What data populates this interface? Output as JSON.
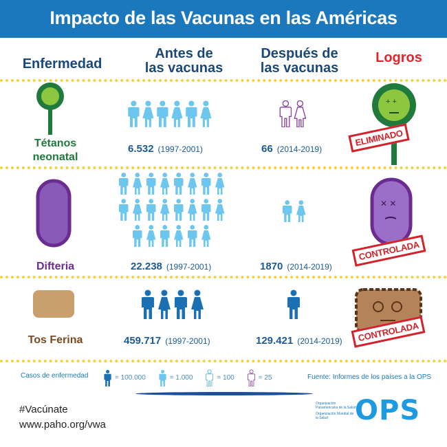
{
  "title": "Impacto de las Vacunas en las Américas",
  "columns": {
    "disease": "Enfermedad",
    "before": "Antes de las vacunas",
    "before_l1": "Antes de",
    "before_l2": "las vacunas",
    "after_l1": "Después de",
    "after_l2": "las vacunas",
    "achievements": "Logros"
  },
  "rows": [
    {
      "disease": "Tétanos neonatal",
      "d1": "Tétanos",
      "d2": "neonatal",
      "before_value": "6.532",
      "before_period": "(1997-2001)",
      "after_value": "66",
      "after_period": "(2014-2019)",
      "status": "ELIMINADO",
      "before_icons": {
        "type": "light",
        "count": 6
      },
      "after_icons": {
        "type": "purple",
        "count": 2
      }
    },
    {
      "disease": "Difteria",
      "before_value": "22.238",
      "before_period": "(1997-2001)",
      "after_value": "1870",
      "after_period": "(2014-2019)",
      "status": "CONTROLADA",
      "before_icons": {
        "type": "light",
        "count": 22
      },
      "after_icons": {
        "type": "light",
        "count": 2
      }
    },
    {
      "disease": "Tos Ferina",
      "before_value": "459.717",
      "before_period": "(1997-2001)",
      "after_value": "129.421",
      "after_period": "(2014-2019)",
      "status": "CONTROLADA",
      "before_icons": {
        "type": "dark",
        "count": 4
      },
      "after_icons": {
        "type": "dark",
        "count": 1
      }
    }
  ],
  "legend": {
    "label": "Casos de enfermedad",
    "items": [
      {
        "type": "dark",
        "value": "= 100.000"
      },
      {
        "type": "light",
        "value": "= 1.000"
      },
      {
        "type": "outline",
        "value": "= 100"
      },
      {
        "type": "purple",
        "value": "= 25"
      }
    ],
    "source": "Fuente: Informes de los países a la OPS"
  },
  "footer": {
    "hashtag": "#Vacúnate",
    "url": "www.paho.org/vwa",
    "org1": "Organización Panamericana de la Salud",
    "org2": "Organización Mundial de la Salud",
    "logo": "OPS"
  },
  "colors": {
    "dark": "#1b6fb3",
    "light": "#6cc6ee",
    "outline": "#4ab0e0",
    "purple": "#8a3fa0"
  }
}
